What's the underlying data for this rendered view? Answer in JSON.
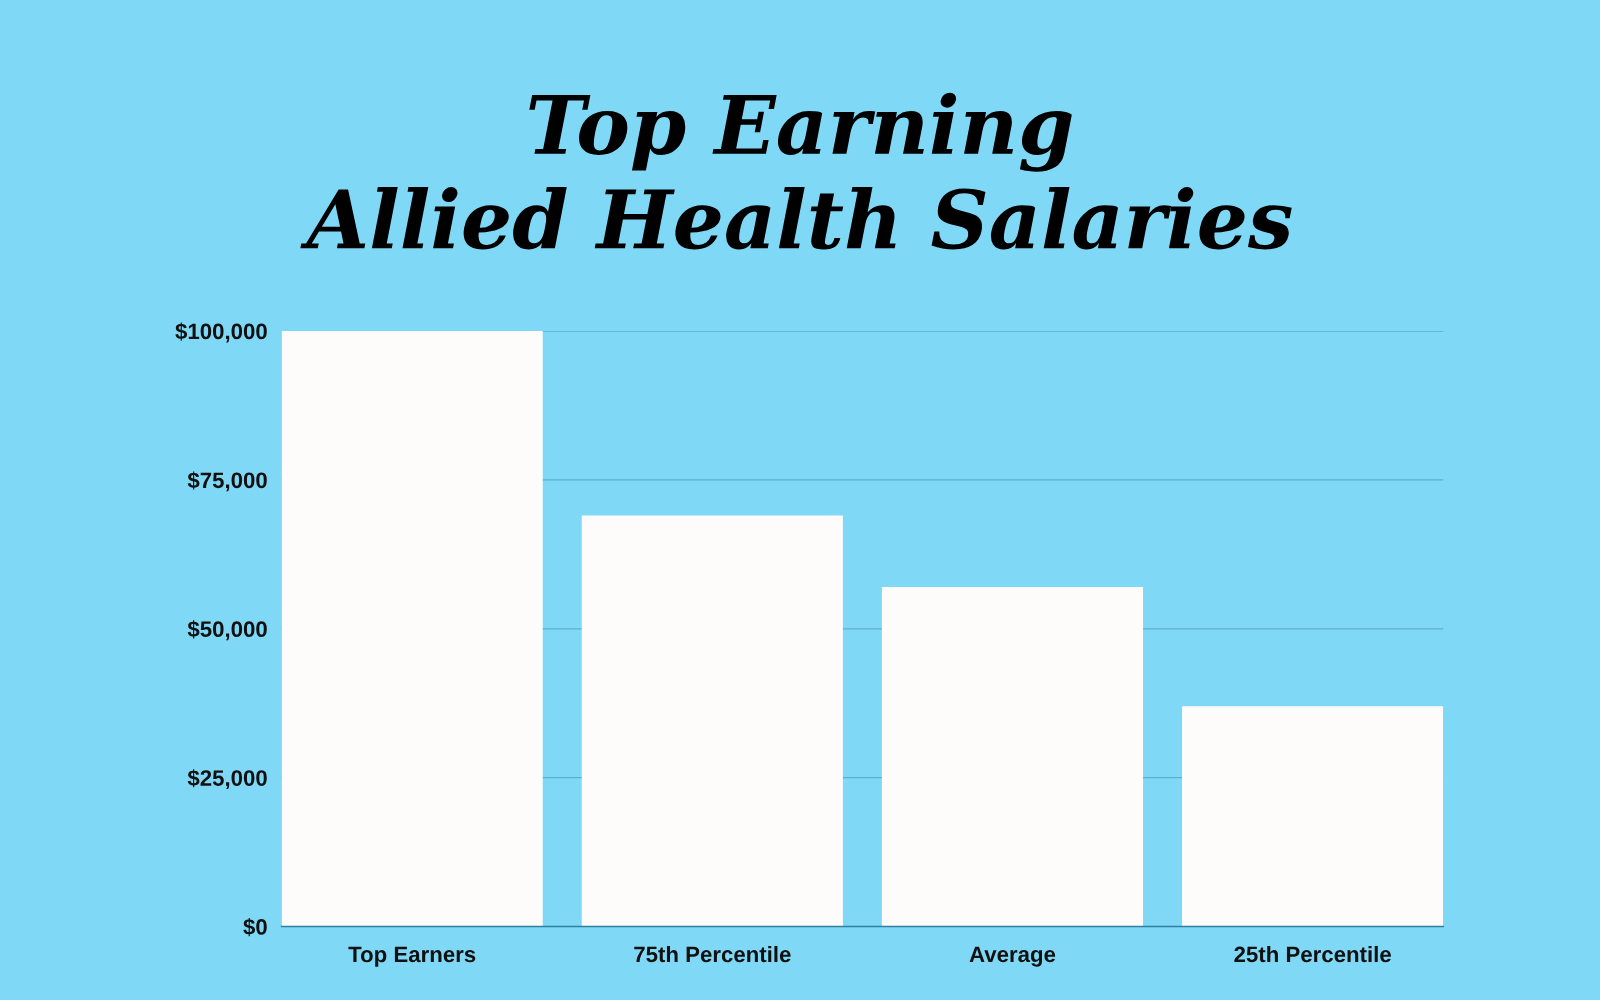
{
  "chart_data": {
    "type": "bar",
    "title": "Top Earning\nAllied Health Salaries",
    "categories": [
      "Top Earners",
      "75th Percentile",
      "Average",
      "25th Percentile"
    ],
    "values": [
      100000,
      69000,
      57000,
      37000
    ],
    "color": "#fdfcfb",
    "ylim": [
      0,
      100000
    ],
    "yticks": [
      {
        "value": 0,
        "label": "$0"
      },
      {
        "value": 25000,
        "label": "$25,000"
      },
      {
        "value": 50000,
        "label": "$50,000"
      },
      {
        "value": 75000,
        "label": "$75,000"
      },
      {
        "value": 100000,
        "label": "$100,000"
      }
    ],
    "grid": "y",
    "legend": false
  }
}
